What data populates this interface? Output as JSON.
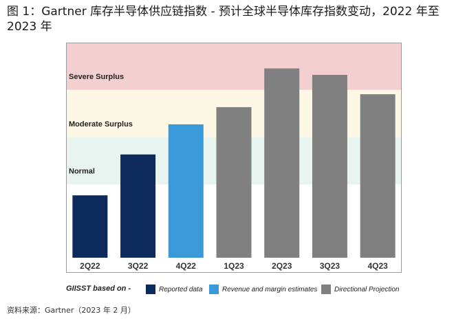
{
  "figure_title": "图 1：Gartner 库存半导体供应链指数 - 预计全球半导体库存指数变动，2022 年至 2023 年",
  "source_note": "资料来源：Gartner（2023 年 2 月）",
  "colors": {
    "severe_band": "#f4cfd0",
    "moderate_band": "#fdf7e6",
    "normal_band": "#e8f4ef",
    "low_band": "#ffffff",
    "reported": "#0d2a5c",
    "estimates": "#3a9ad9",
    "projection": "#808080",
    "frame": "#9a9a9a"
  },
  "chart_data": {
    "type": "bar",
    "title": "",
    "xlabel": "",
    "ylabel": "",
    "ylim": [
      0,
      100
    ],
    "categories": [
      "2Q22",
      "3Q22",
      "4Q22",
      "1Q23",
      "2Q23",
      "3Q23",
      "4Q23"
    ],
    "values": [
      29,
      48,
      62,
      70,
      88,
      85,
      76
    ],
    "bar_groups": [
      "reported",
      "reported",
      "estimates",
      "projection",
      "projection",
      "projection",
      "projection"
    ],
    "bands": [
      {
        "label": "Severe Surplus",
        "from": 78,
        "to": 100,
        "color_key": "severe_band"
      },
      {
        "label": "Moderate Surplus",
        "from": 56,
        "to": 78,
        "color_key": "moderate_band"
      },
      {
        "label": "Normal",
        "from": 34,
        "to": 56,
        "color_key": "normal_band"
      },
      {
        "label": "",
        "from": 0,
        "to": 34,
        "color_key": "low_band"
      }
    ],
    "grid": false,
    "legend": {
      "title": "GIISST based on -",
      "placement": "bottom",
      "items": [
        {
          "label": "Reported data",
          "color_key": "reported"
        },
        {
          "label": "Revenue and margin estimates",
          "color_key": "estimates"
        },
        {
          "label": "Directional Projection",
          "color_key": "projection"
        }
      ]
    }
  }
}
